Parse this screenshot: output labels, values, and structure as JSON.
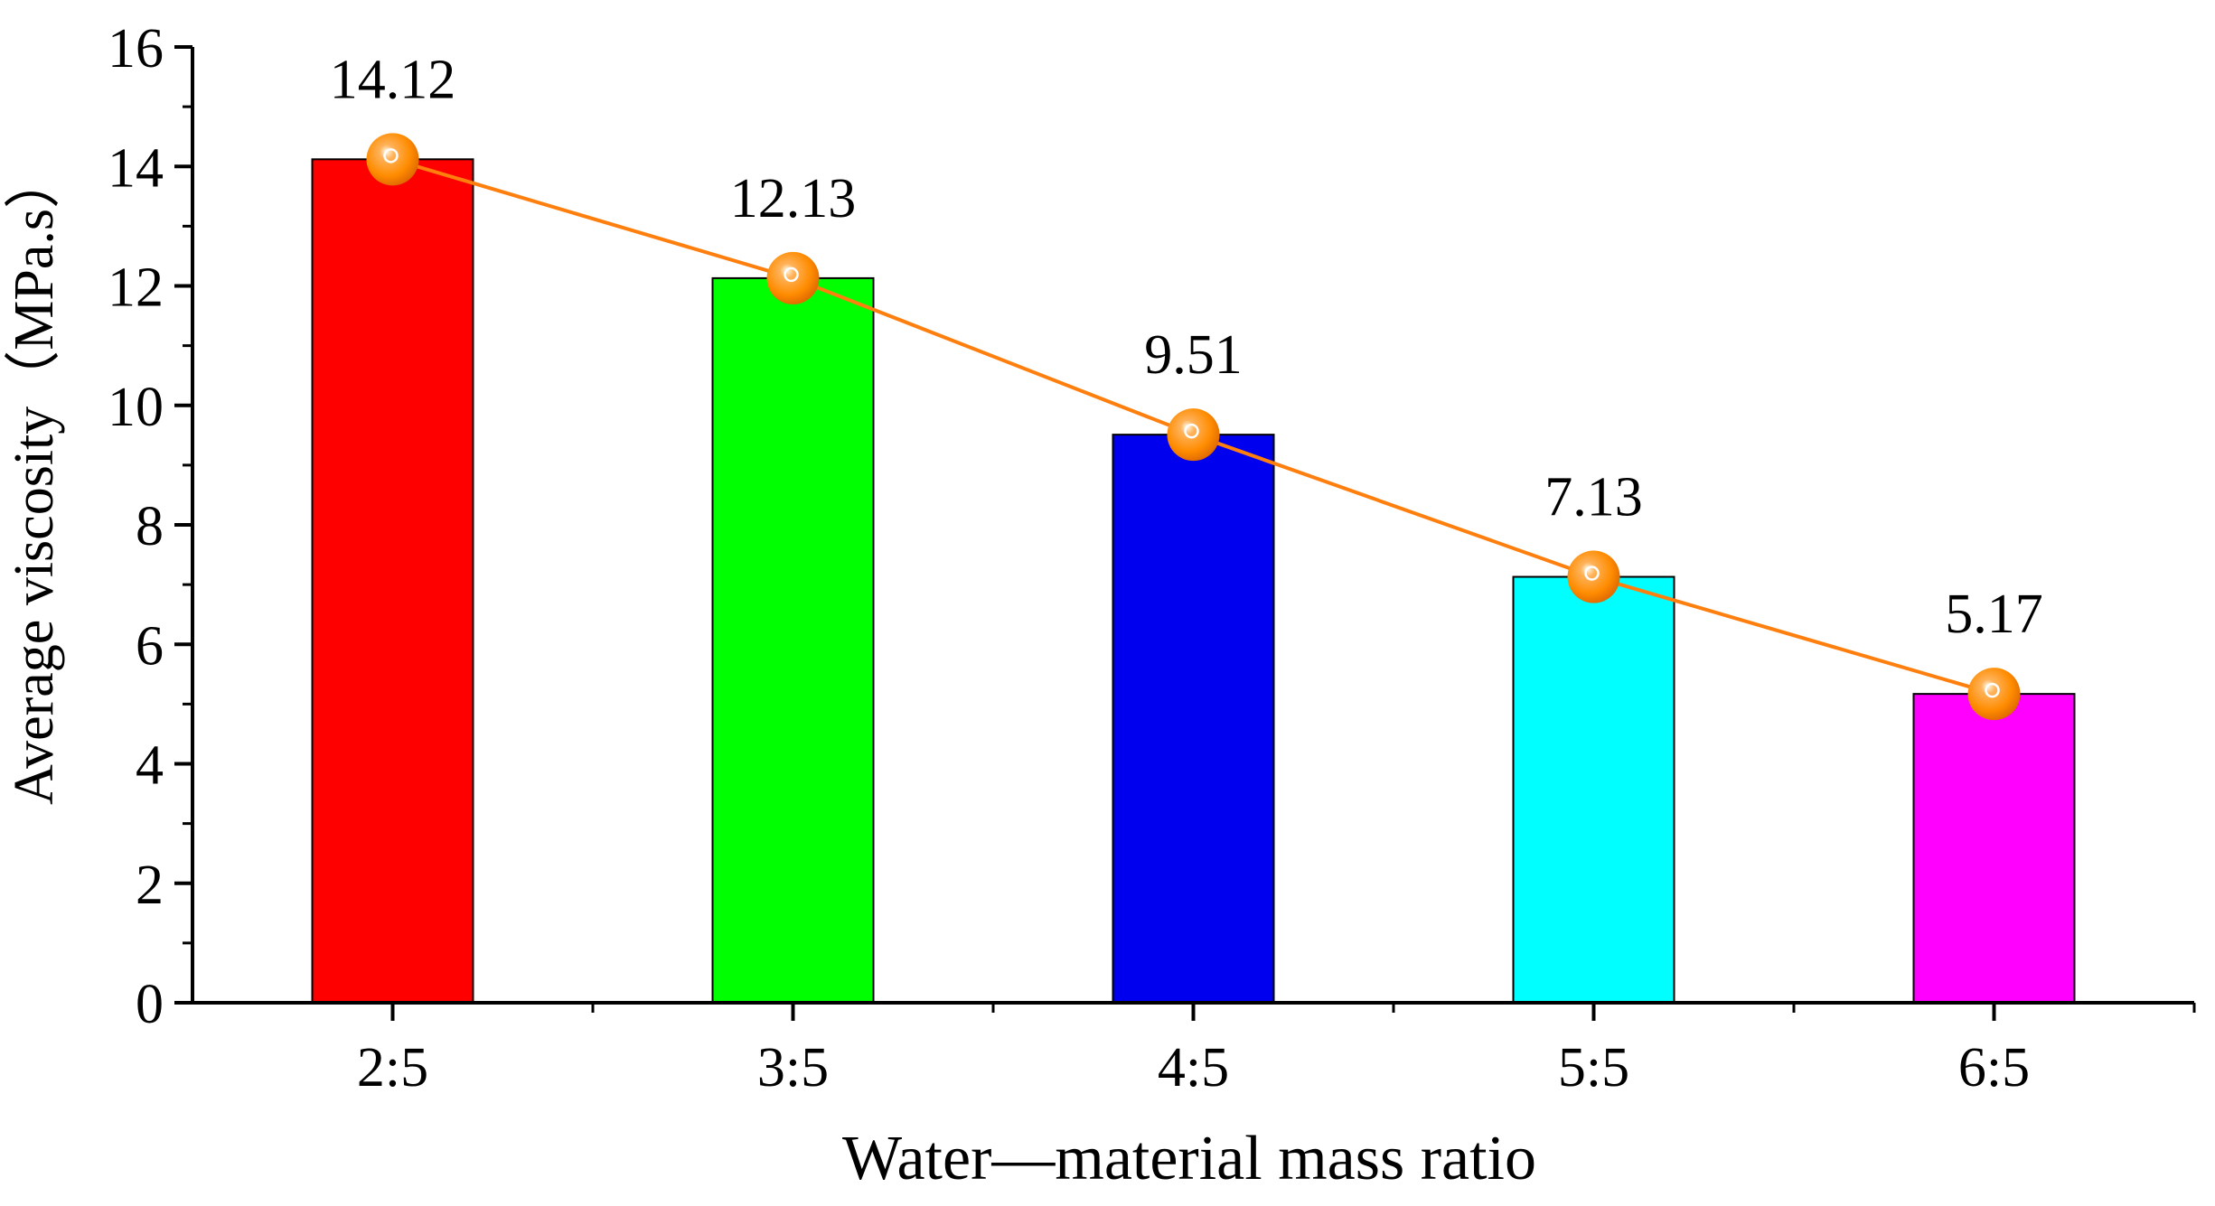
{
  "chart_data": {
    "type": "bar",
    "categories": [
      "2:5",
      "3:5",
      "4:5",
      "5:5",
      "6:5"
    ],
    "values": [
      14.12,
      12.13,
      9.51,
      7.13,
      5.17
    ],
    "data_labels": [
      "14.12",
      "12.13",
      "9.51",
      "7.13",
      "5.17"
    ],
    "bar_colors": [
      "#ff0000",
      "#00ff00",
      "#0000ee",
      "#00ffff",
      "#ff00ff"
    ],
    "line_overlay": {
      "values": [
        14.12,
        12.13,
        9.51,
        7.13,
        5.17
      ],
      "color": "#ff7f0e",
      "marker_color": "#ff8c00"
    },
    "title": "",
    "xlabel": "Water—material mass ratio",
    "ylabel": "Average viscosity（MPa.s）",
    "ylim": [
      0,
      16
    ],
    "yticks": [
      "0",
      "2",
      "4",
      "6",
      "8",
      "10",
      "12",
      "14",
      "16"
    ],
    "grid": false,
    "legend": "none"
  }
}
